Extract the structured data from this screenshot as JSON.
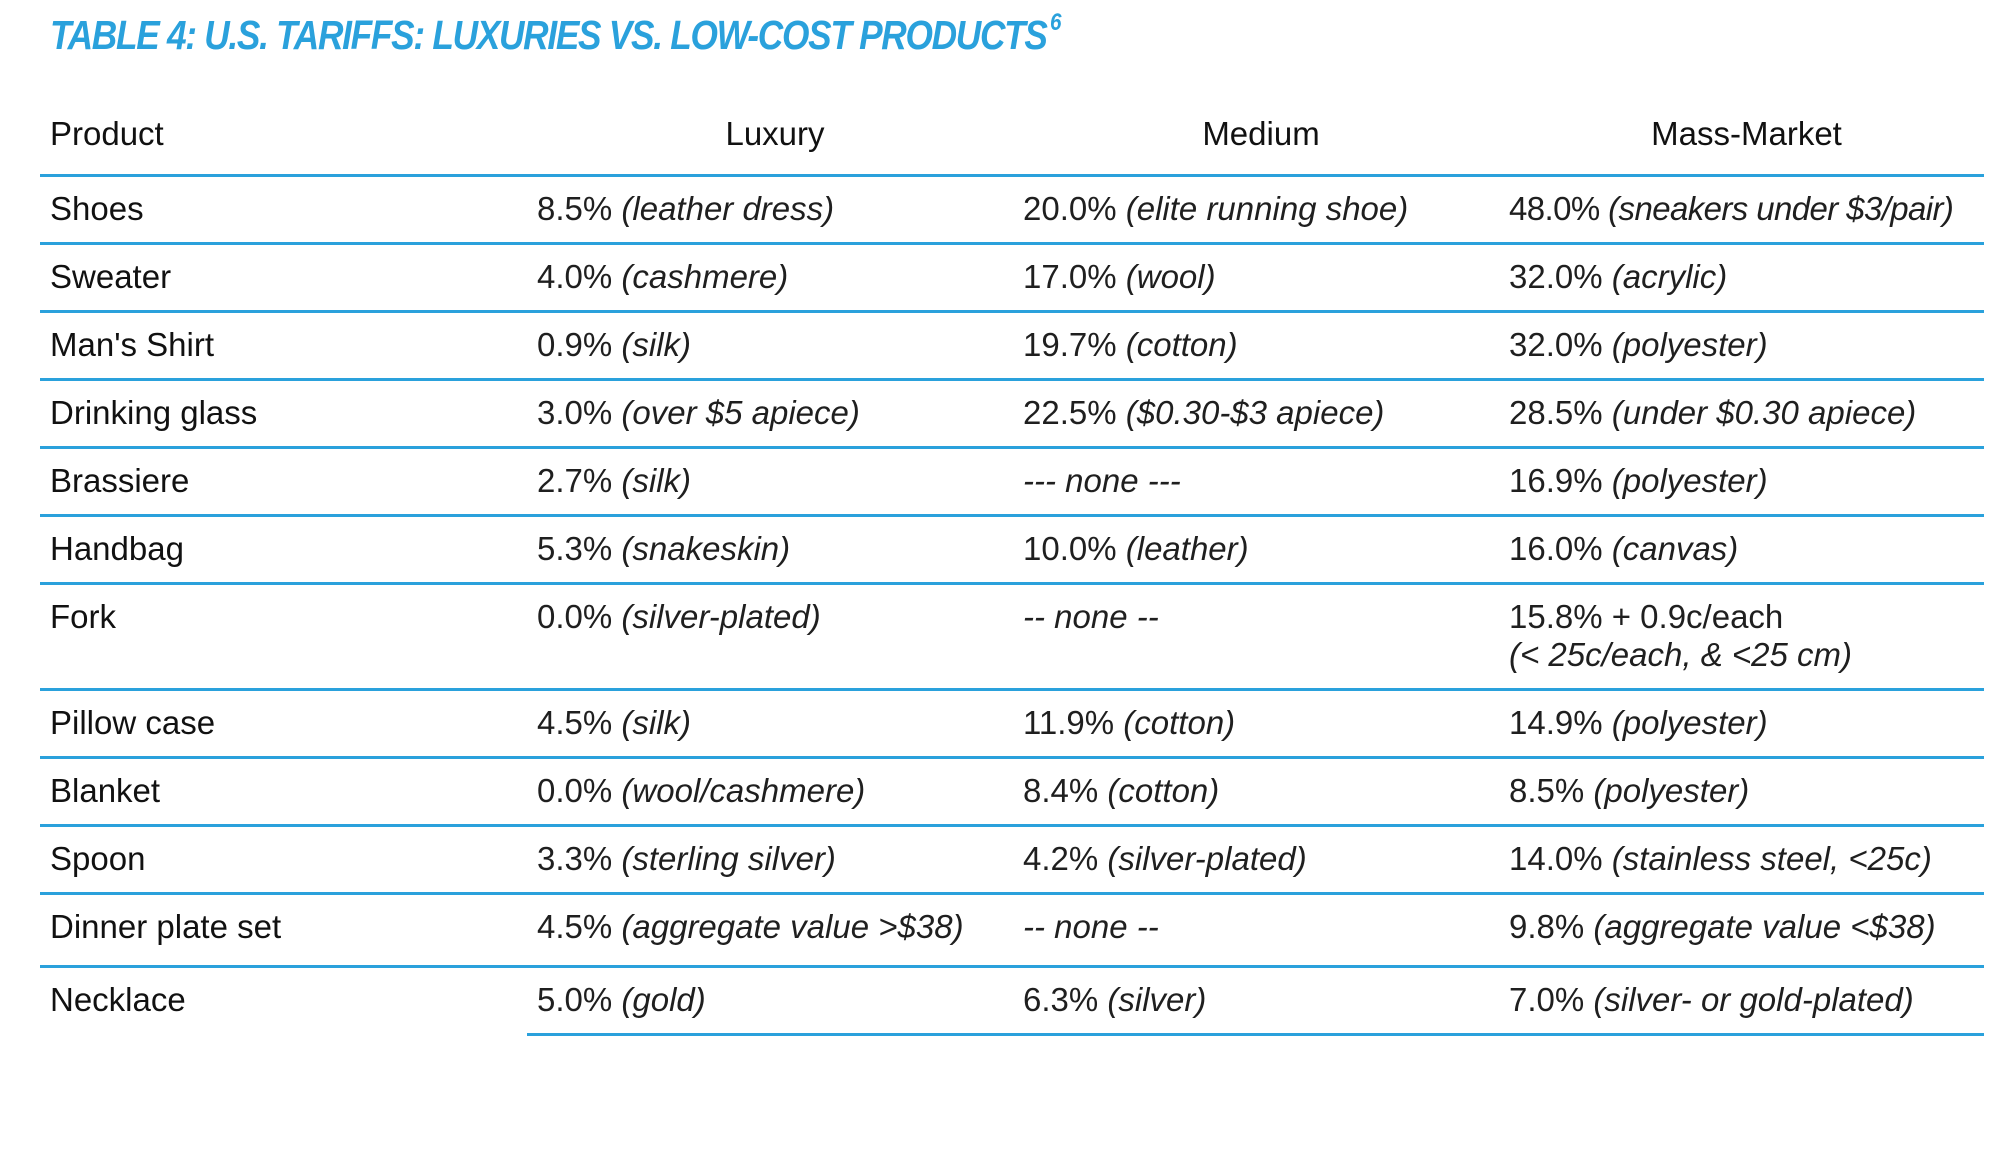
{
  "title": "TABLE 4: U.S. TARIFFS: LUXURIES VS. LOW-COST PRODUCTS",
  "title_footnote": "6",
  "accent_color": "#2aa1dc",
  "columns": [
    "Product",
    "Luxury",
    "Medium",
    "Mass-Market"
  ],
  "rows": [
    {
      "product": "Shoes",
      "luxury": {
        "rate": "8.5%",
        "desc": "(leather dress)"
      },
      "medium": {
        "rate": "20.0%",
        "desc": "(elite running shoe)"
      },
      "mass": {
        "rate": "48.0%",
        "desc": "(sneakers under $3/pair)"
      }
    },
    {
      "product": "Sweater",
      "luxury": {
        "rate": "4.0%",
        "desc": "(cashmere)"
      },
      "medium": {
        "rate": "17.0%",
        "desc": "(wool)"
      },
      "mass": {
        "rate": "32.0%",
        "desc": "(acrylic)"
      }
    },
    {
      "product": "Man's Shirt",
      "luxury": {
        "rate": "0.9%",
        "desc": "(silk)"
      },
      "medium": {
        "rate": "19.7%",
        "desc": "(cotton)"
      },
      "mass": {
        "rate": "32.0%",
        "desc": "(polyester)"
      }
    },
    {
      "product": "Drinking glass",
      "luxury": {
        "rate": "3.0%",
        "desc": "(over $5 apiece)"
      },
      "medium": {
        "rate": "22.5%",
        "desc": "($0.30-$3 apiece)"
      },
      "mass": {
        "rate": "28.5%",
        "desc": "(under $0.30 apiece)"
      }
    },
    {
      "product": "Brassiere",
      "luxury": {
        "rate": "2.7%",
        "desc": "(silk)"
      },
      "medium": {
        "rate": "",
        "desc": "--- none ---"
      },
      "mass": {
        "rate": "16.9%",
        "desc": "(polyester)"
      }
    },
    {
      "product": "Handbag",
      "luxury": {
        "rate": "5.3%",
        "desc": "(snakeskin)"
      },
      "medium": {
        "rate": "10.0%",
        "desc": "(leather)"
      },
      "mass": {
        "rate": "16.0%",
        "desc": "(canvas)"
      }
    },
    {
      "product": "Fork",
      "luxury": {
        "rate": "0.0%",
        "desc": "(silver-plated)"
      },
      "medium": {
        "rate": "",
        "desc": "-- none --"
      },
      "mass": {
        "rate": "15.8% + 0.9c/each",
        "desc": "(< 25c/each, & <25 cm)"
      }
    },
    {
      "product": "Pillow case",
      "luxury": {
        "rate": "4.5%",
        "desc": "(silk)"
      },
      "medium": {
        "rate": "11.9%",
        "desc": "(cotton)"
      },
      "mass": {
        "rate": "14.9%",
        "desc": "(polyester)"
      }
    },
    {
      "product": "Blanket",
      "luxury": {
        "rate": "0.0%",
        "desc": "(wool/cashmere)"
      },
      "medium": {
        "rate": "8.4%",
        "desc": "(cotton)"
      },
      "mass": {
        "rate": "8.5%",
        "desc": "(polyester)"
      }
    },
    {
      "product": "Spoon",
      "luxury": {
        "rate": "3.3%",
        "desc": "(sterling silver)"
      },
      "medium": {
        "rate": "4.2%",
        "desc": "(silver-plated)"
      },
      "mass": {
        "rate": "14.0%",
        "desc": "(stainless steel, <25c)"
      }
    },
    {
      "product": "Dinner plate set",
      "luxury": {
        "rate": "4.5%",
        "desc": "(aggregate value >$38)"
      },
      "medium": {
        "rate": "",
        "desc": "-- none --"
      },
      "mass": {
        "rate": "9.8%",
        "desc": "(aggregate value <$38)"
      }
    },
    {
      "product": "Necklace",
      "luxury": {
        "rate": "5.0%",
        "desc": "(gold)"
      },
      "medium": {
        "rate": "6.3%",
        "desc": "(silver)"
      },
      "mass": {
        "rate": "7.0%",
        "desc": "(silver- or gold-plated)"
      }
    }
  ]
}
